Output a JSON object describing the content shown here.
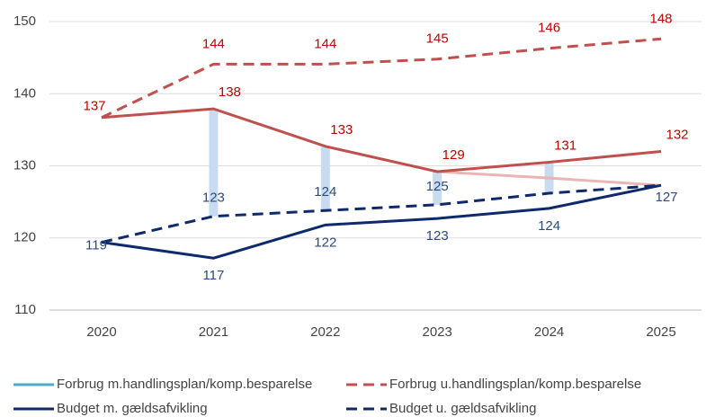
{
  "chart_data": {
    "type": "line",
    "categories": [
      "2020",
      "2021",
      "2022",
      "2023",
      "2024",
      "2025"
    ],
    "ylim": [
      110,
      152
    ],
    "yticks": [
      110,
      120,
      130,
      140,
      150
    ],
    "grid": true,
    "series": [
      {
        "name": "Forbrug m.handlingsplan/komp.besparelse",
        "color": "#4bacc6",
        "dash": false,
        "values": [
          null,
          null,
          null,
          null,
          null,
          null
        ]
      },
      {
        "name": "Forbrug u.handlingsplan/komp.besparelse",
        "color": "#c0504d",
        "dash": true,
        "values": [
          136.7,
          144.1,
          144.1,
          144.8,
          146.3,
          147.6
        ],
        "value_labels": [
          "137",
          "144",
          "144",
          "145",
          "146",
          "148"
        ]
      },
      {
        "name": "Budget m. gældsafvikling",
        "color": "#0f2a6b",
        "dash": false,
        "values": [
          119.4,
          117.2,
          121.8,
          122.7,
          124.1,
          127.3
        ],
        "value_labels": [
          "119",
          "117",
          "122",
          "123",
          "124",
          "127"
        ]
      },
      {
        "name": "Budget u. gældsafvikling",
        "color": "#0f2a6b",
        "dash": true,
        "values": [
          119.4,
          123.0,
          123.8,
          124.6,
          126.2,
          127.3
        ],
        "value_labels": [
          null,
          "123",
          "124",
          "125",
          null,
          null
        ]
      },
      {
        "color": "#c0504d",
        "dash": false,
        "values": [
          136.7,
          137.9,
          132.7,
          129.2,
          130.5,
          132.0
        ],
        "value_labels": [
          null,
          "138",
          "133",
          "129",
          "131",
          "132"
        ]
      },
      {
        "color": "#eab5b5",
        "dash": false,
        "values": [
          null,
          null,
          null,
          129.2,
          128.3,
          127.3
        ]
      }
    ]
  }
}
